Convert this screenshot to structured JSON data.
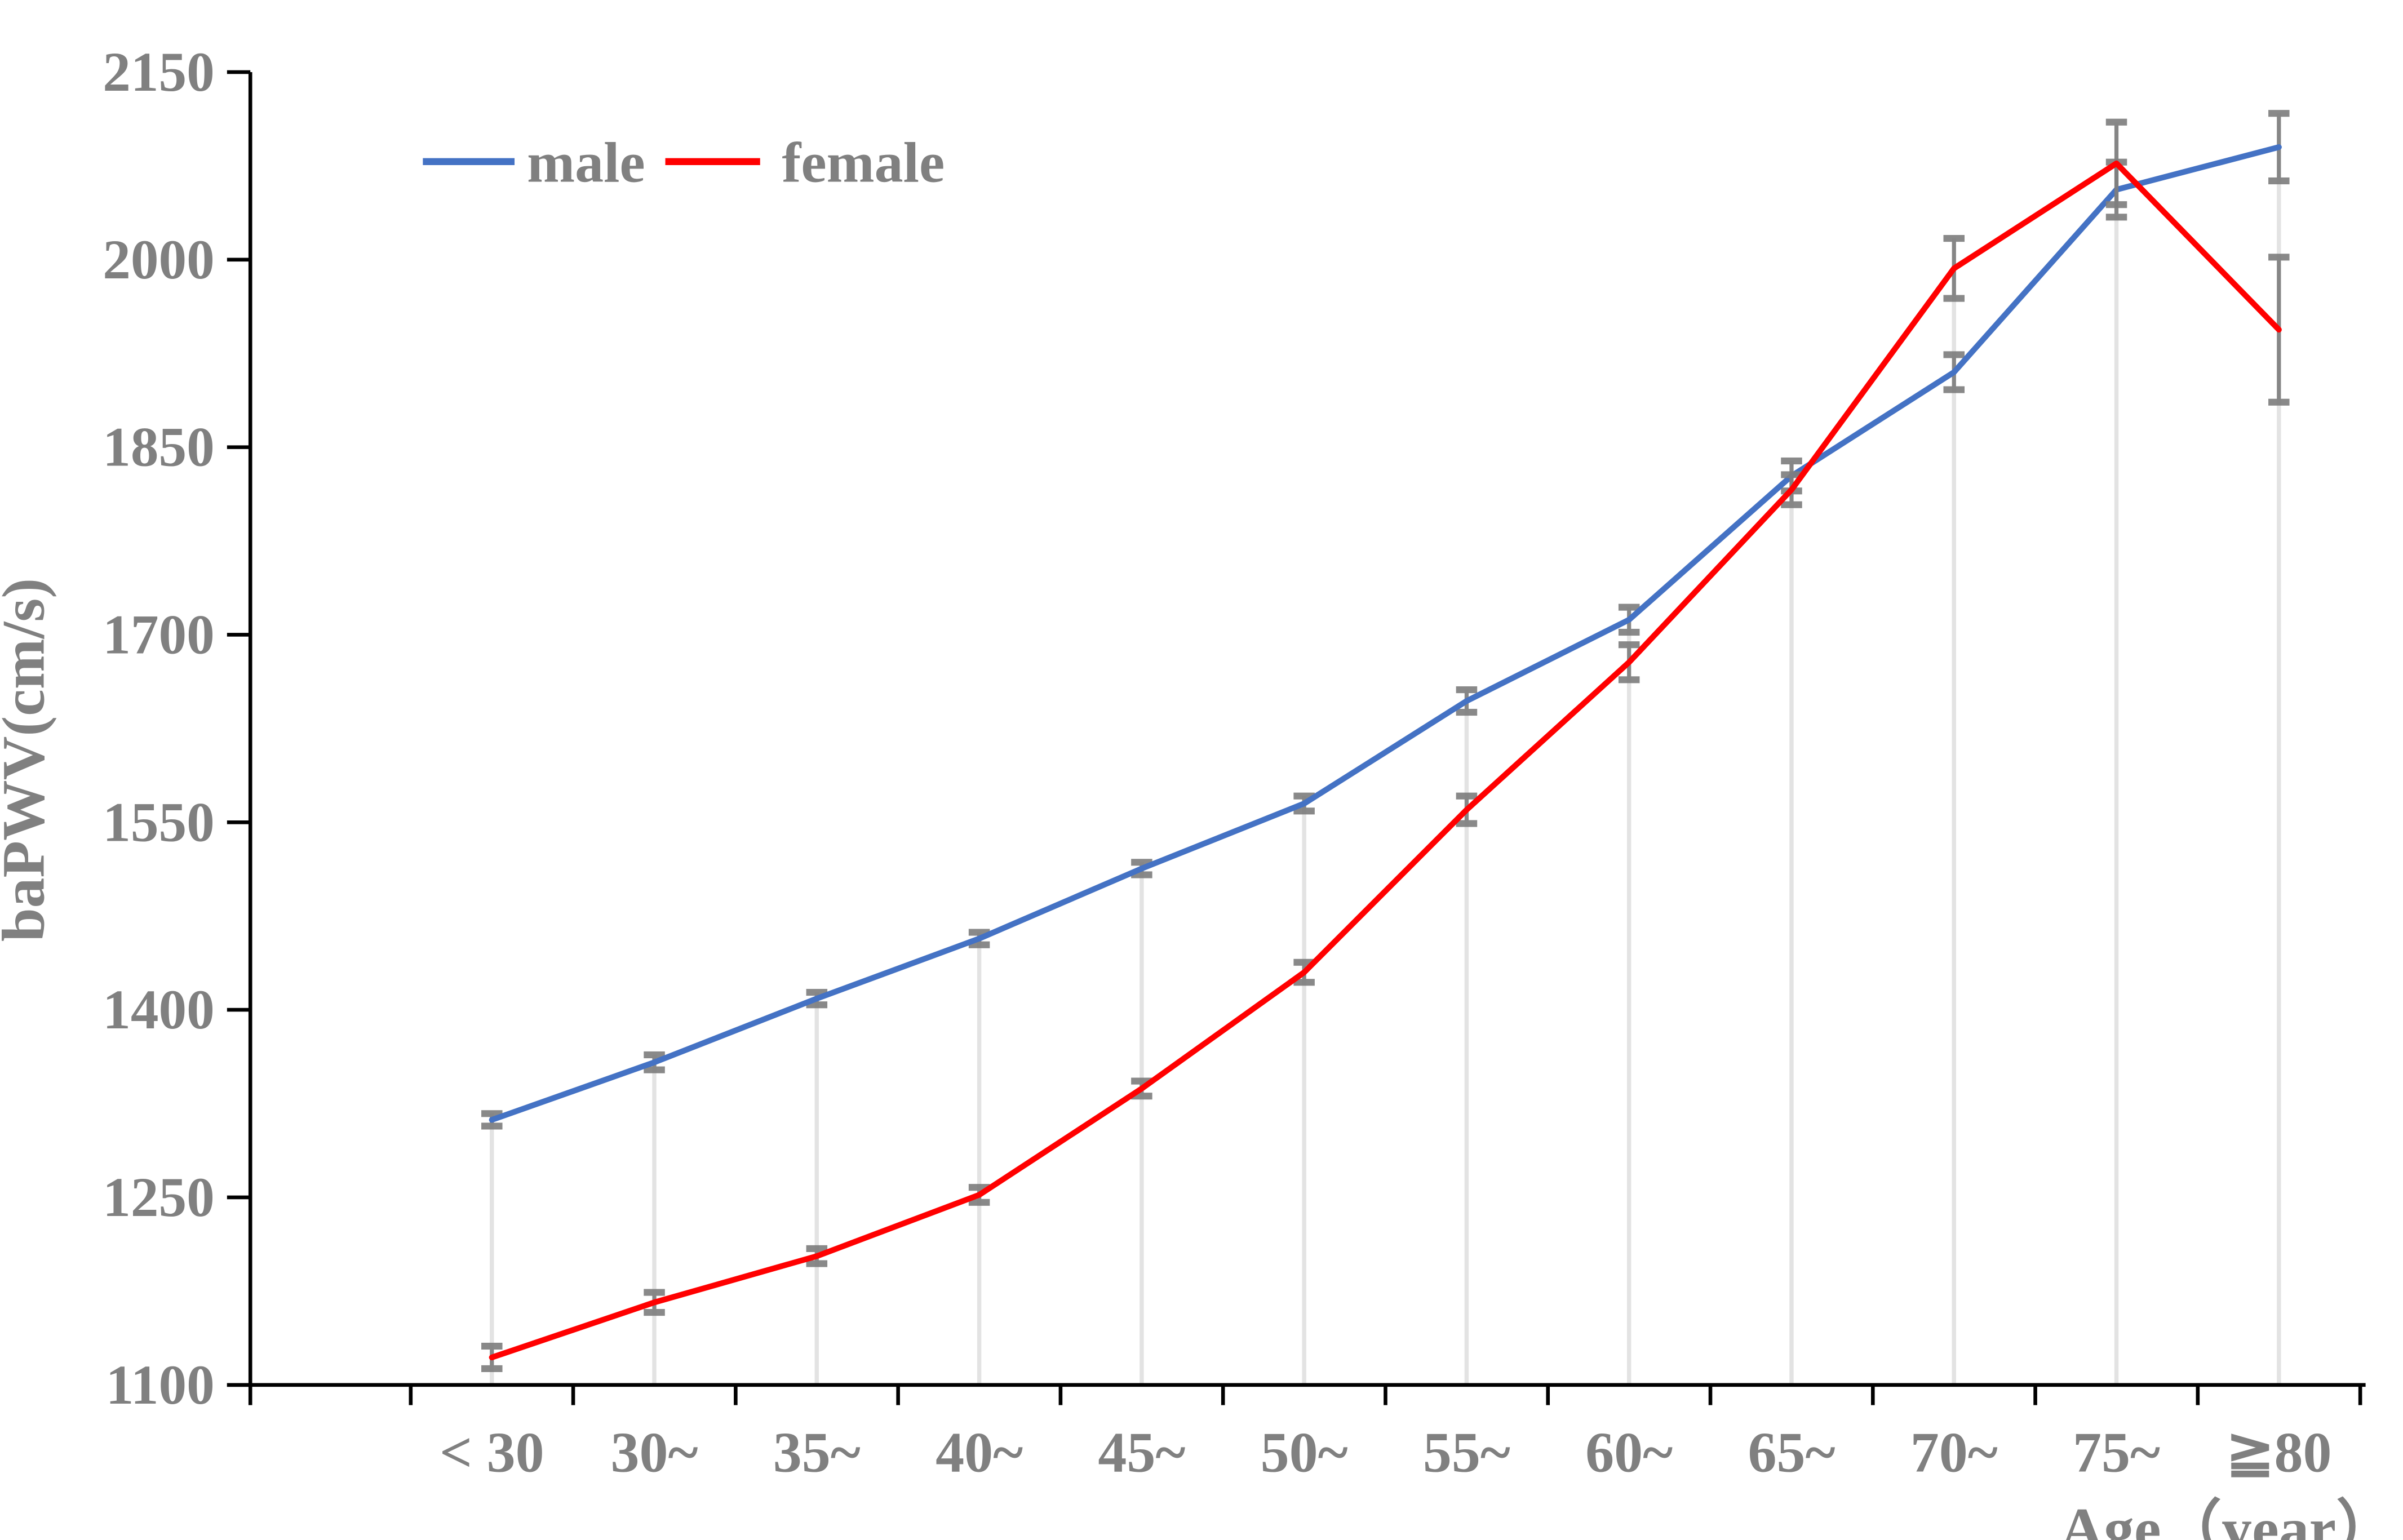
{
  "figure": {
    "background": "#ffffff"
  },
  "chart_data": {
    "type": "line",
    "title": "",
    "xlabel": "Age（year）",
    "ylabel": "baPWV(cm/s)",
    "categories": [
      "< 30",
      "30~",
      "35~",
      "40~",
      "45~",
      "50~",
      "55~",
      "60~",
      "65~",
      "70~",
      "75~",
      "≧80"
    ],
    "y_ticks": [
      1100,
      1250,
      1400,
      1550,
      1700,
      1850,
      2000,
      2150
    ],
    "ylim": [
      1100,
      2150
    ],
    "grid": "vertical-drop-lines-only",
    "legend_position": "top-left-inside",
    "series": [
      {
        "name": "male",
        "color": "#4472C4",
        "values": [
          1312,
          1358,
          1409,
          1457,
          1513,
          1565,
          1647,
          1712,
          1827,
          1910,
          2056,
          2090
        ],
        "errors": [
          5,
          6,
          5,
          5,
          5,
          6,
          9,
          10,
          12,
          14,
          22,
          27
        ]
      },
      {
        "name": "female",
        "color": "#FF0000",
        "values": [
          1122,
          1166,
          1203,
          1252,
          1337,
          1430,
          1560,
          1678,
          1816,
          1993,
          2077,
          1944
        ],
        "errors": [
          9,
          8,
          6,
          6,
          6,
          8,
          11,
          14,
          12,
          24,
          33,
          58
        ]
      }
    ],
    "error_bar_color": "#7F7F7F",
    "drop_line_color": "#E3E3E3",
    "axis_color": "#000000",
    "label_color": "#808080"
  }
}
